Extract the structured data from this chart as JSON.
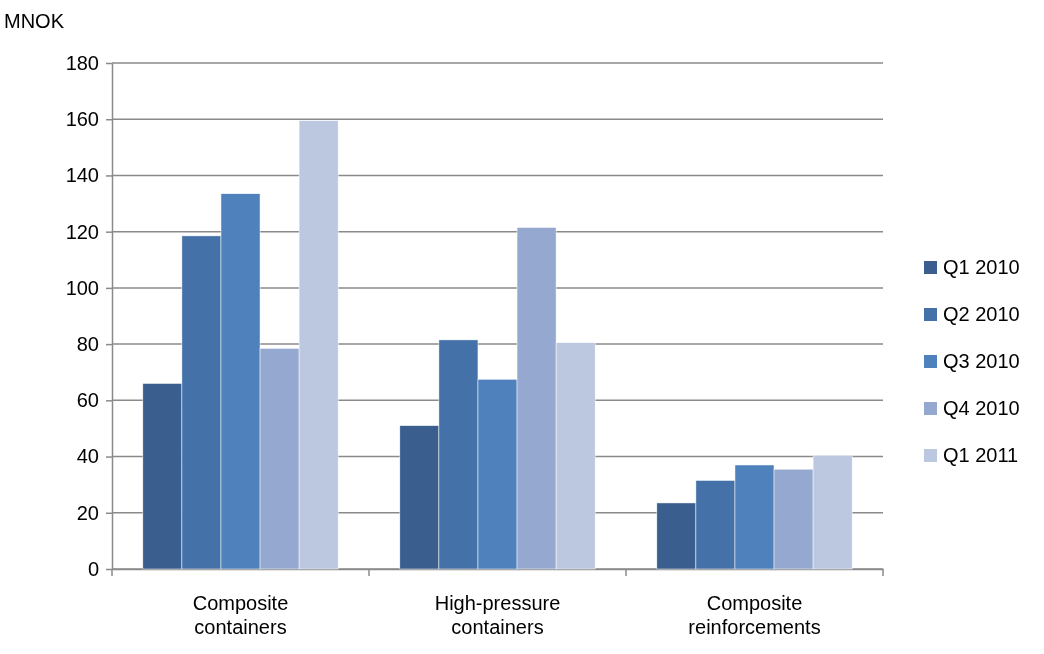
{
  "chart_data": {
    "type": "bar",
    "ylabel": "MNOK",
    "categories": [
      "Composite containers",
      "High-pressure containers",
      "Composite reinforcements"
    ],
    "series": [
      {
        "name": "Q1 2010",
        "color": "#3a5f8f",
        "values": [
          66,
          51,
          23.5
        ]
      },
      {
        "name": "Q2 2010",
        "color": "#4472a8",
        "values": [
          118.5,
          81.5,
          31.5
        ]
      },
      {
        "name": "Q3 2010",
        "color": "#4f81bd",
        "values": [
          133.5,
          67.5,
          37
        ]
      },
      {
        "name": "Q4 2010",
        "color": "#95a9d0",
        "values": [
          78.5,
          121.5,
          35.5
        ]
      },
      {
        "name": "Q1 2011",
        "color": "#bcc8e0",
        "values": [
          159.5,
          80.5,
          40.5
        ]
      }
    ],
    "ylim": [
      0,
      180
    ],
    "yticks": [
      0,
      20,
      40,
      60,
      80,
      100,
      120,
      140,
      160,
      180
    ],
    "grid": "y",
    "legend": "right"
  }
}
